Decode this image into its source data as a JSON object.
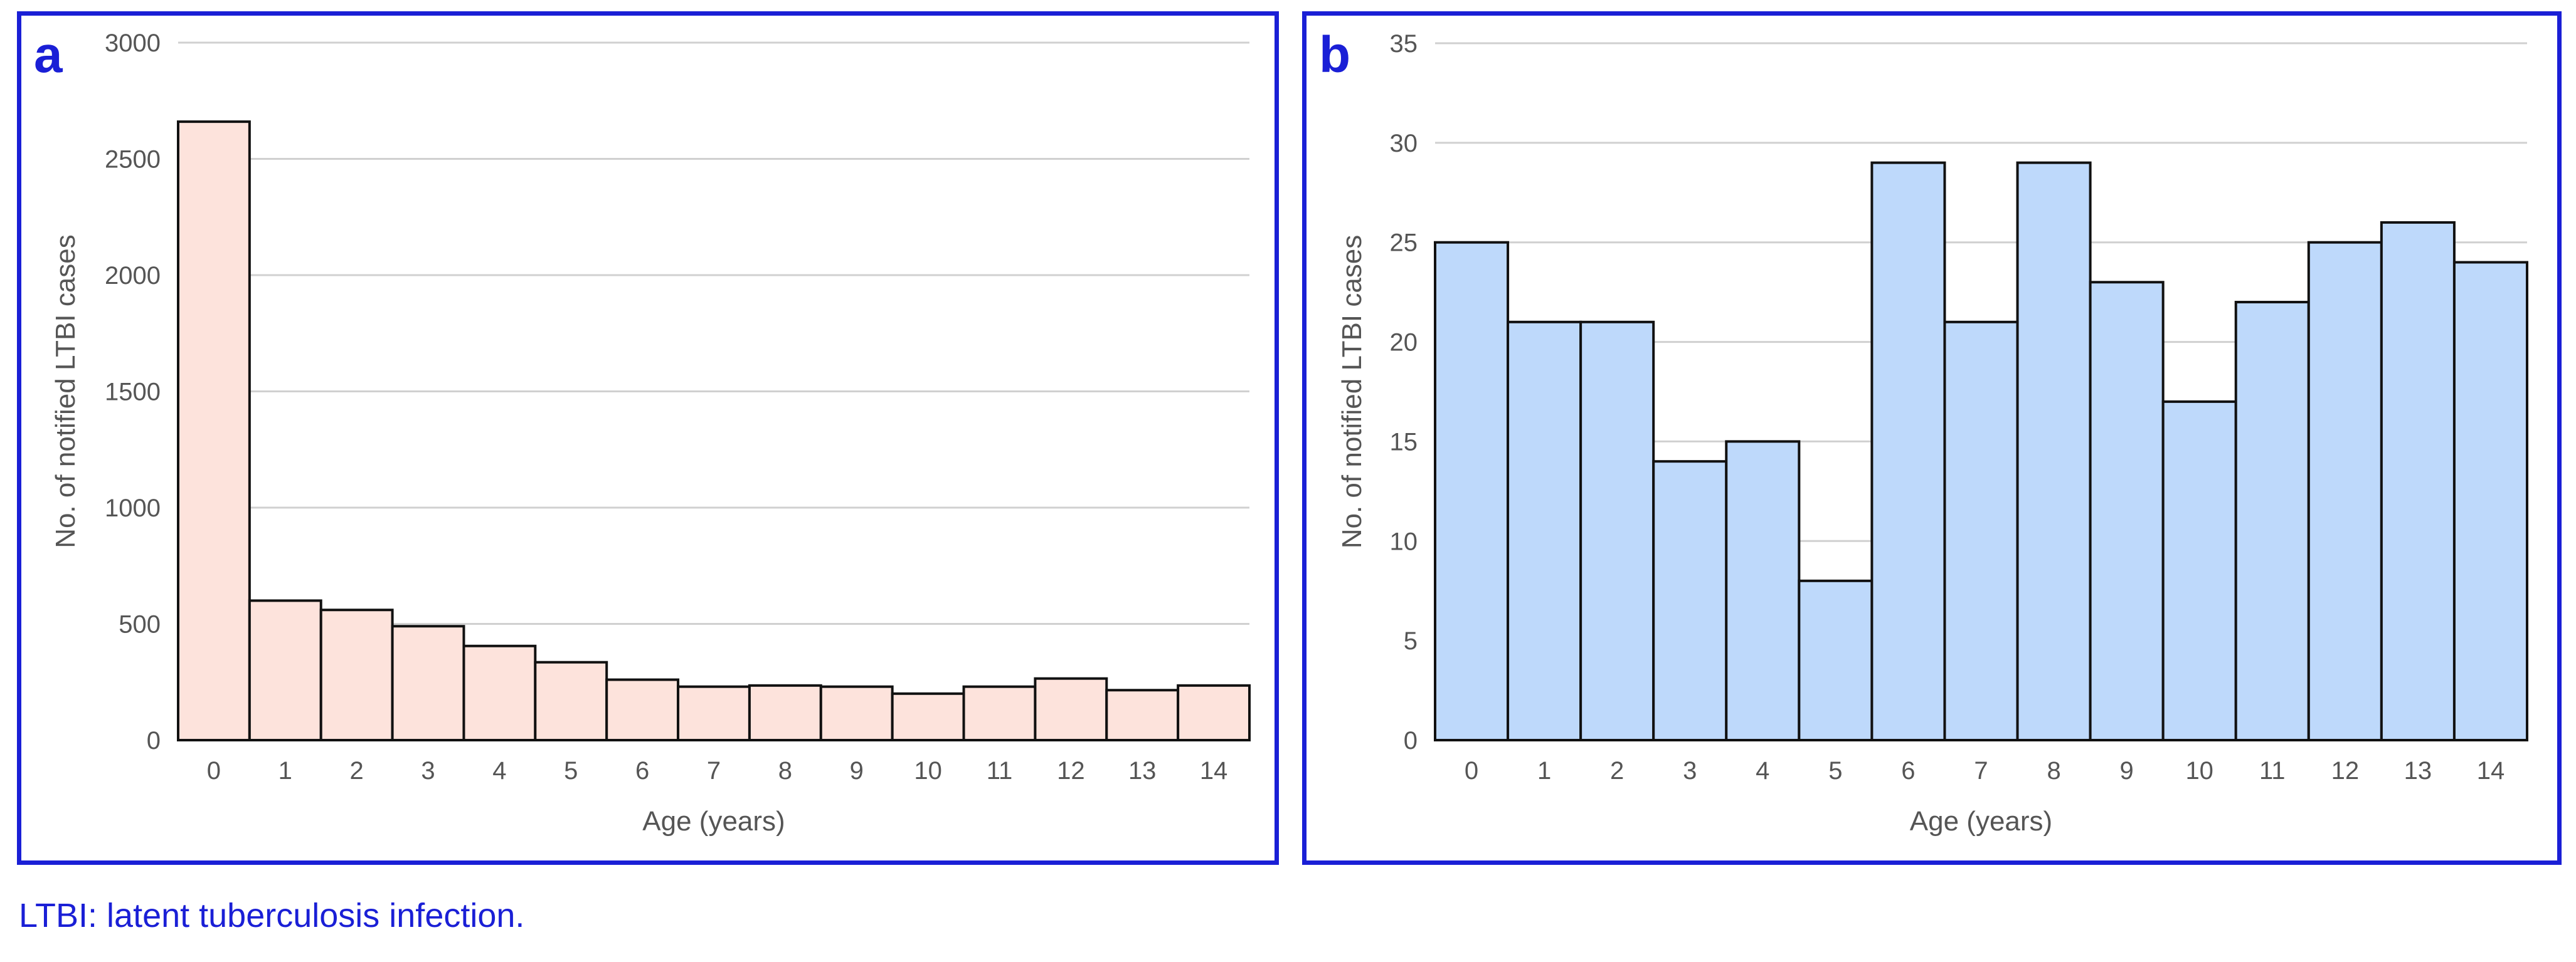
{
  "footnote": "LTBI: latent tuberculosis infection.",
  "colors": {
    "border": "#1a1fd6",
    "panel_label": "#1a1fd6",
    "bar_a": "#fde3dc",
    "bar_b": "#bed9fb",
    "bar_stroke": "#111111",
    "grid": "#d0d0d0",
    "text": "#555555"
  },
  "chart_data": [
    {
      "type": "bar",
      "panel_label": "a",
      "categories": [
        "0",
        "1",
        "2",
        "3",
        "4",
        "5",
        "6",
        "7",
        "8",
        "9",
        "10",
        "11",
        "12",
        "13",
        "14"
      ],
      "values": [
        2660,
        600,
        560,
        490,
        405,
        335,
        260,
        230,
        235,
        230,
        200,
        230,
        265,
        215,
        235
      ],
      "xlabel": "Age (years)",
      "ylabel": "No. of notified LTBI cases",
      "ylim": [
        0,
        3000
      ],
      "yticks": [
        0,
        500,
        1000,
        1500,
        2000,
        2500,
        3000
      ],
      "grid": true,
      "bar_color": "#fde3dc"
    },
    {
      "type": "bar",
      "panel_label": "b",
      "categories": [
        "0",
        "1",
        "2",
        "3",
        "4",
        "5",
        "6",
        "7",
        "8",
        "9",
        "10",
        "11",
        "12",
        "13",
        "14"
      ],
      "values": [
        25,
        21,
        21,
        14,
        15,
        8,
        29,
        21,
        29,
        23,
        17,
        22,
        25,
        26,
        24
      ],
      "xlabel": "Age (years)",
      "ylabel": "No. of notified LTBI cases",
      "ylim": [
        0,
        35
      ],
      "yticks": [
        0,
        5,
        10,
        15,
        20,
        25,
        30,
        35
      ],
      "grid": true,
      "bar_color": "#bed9fb"
    }
  ]
}
